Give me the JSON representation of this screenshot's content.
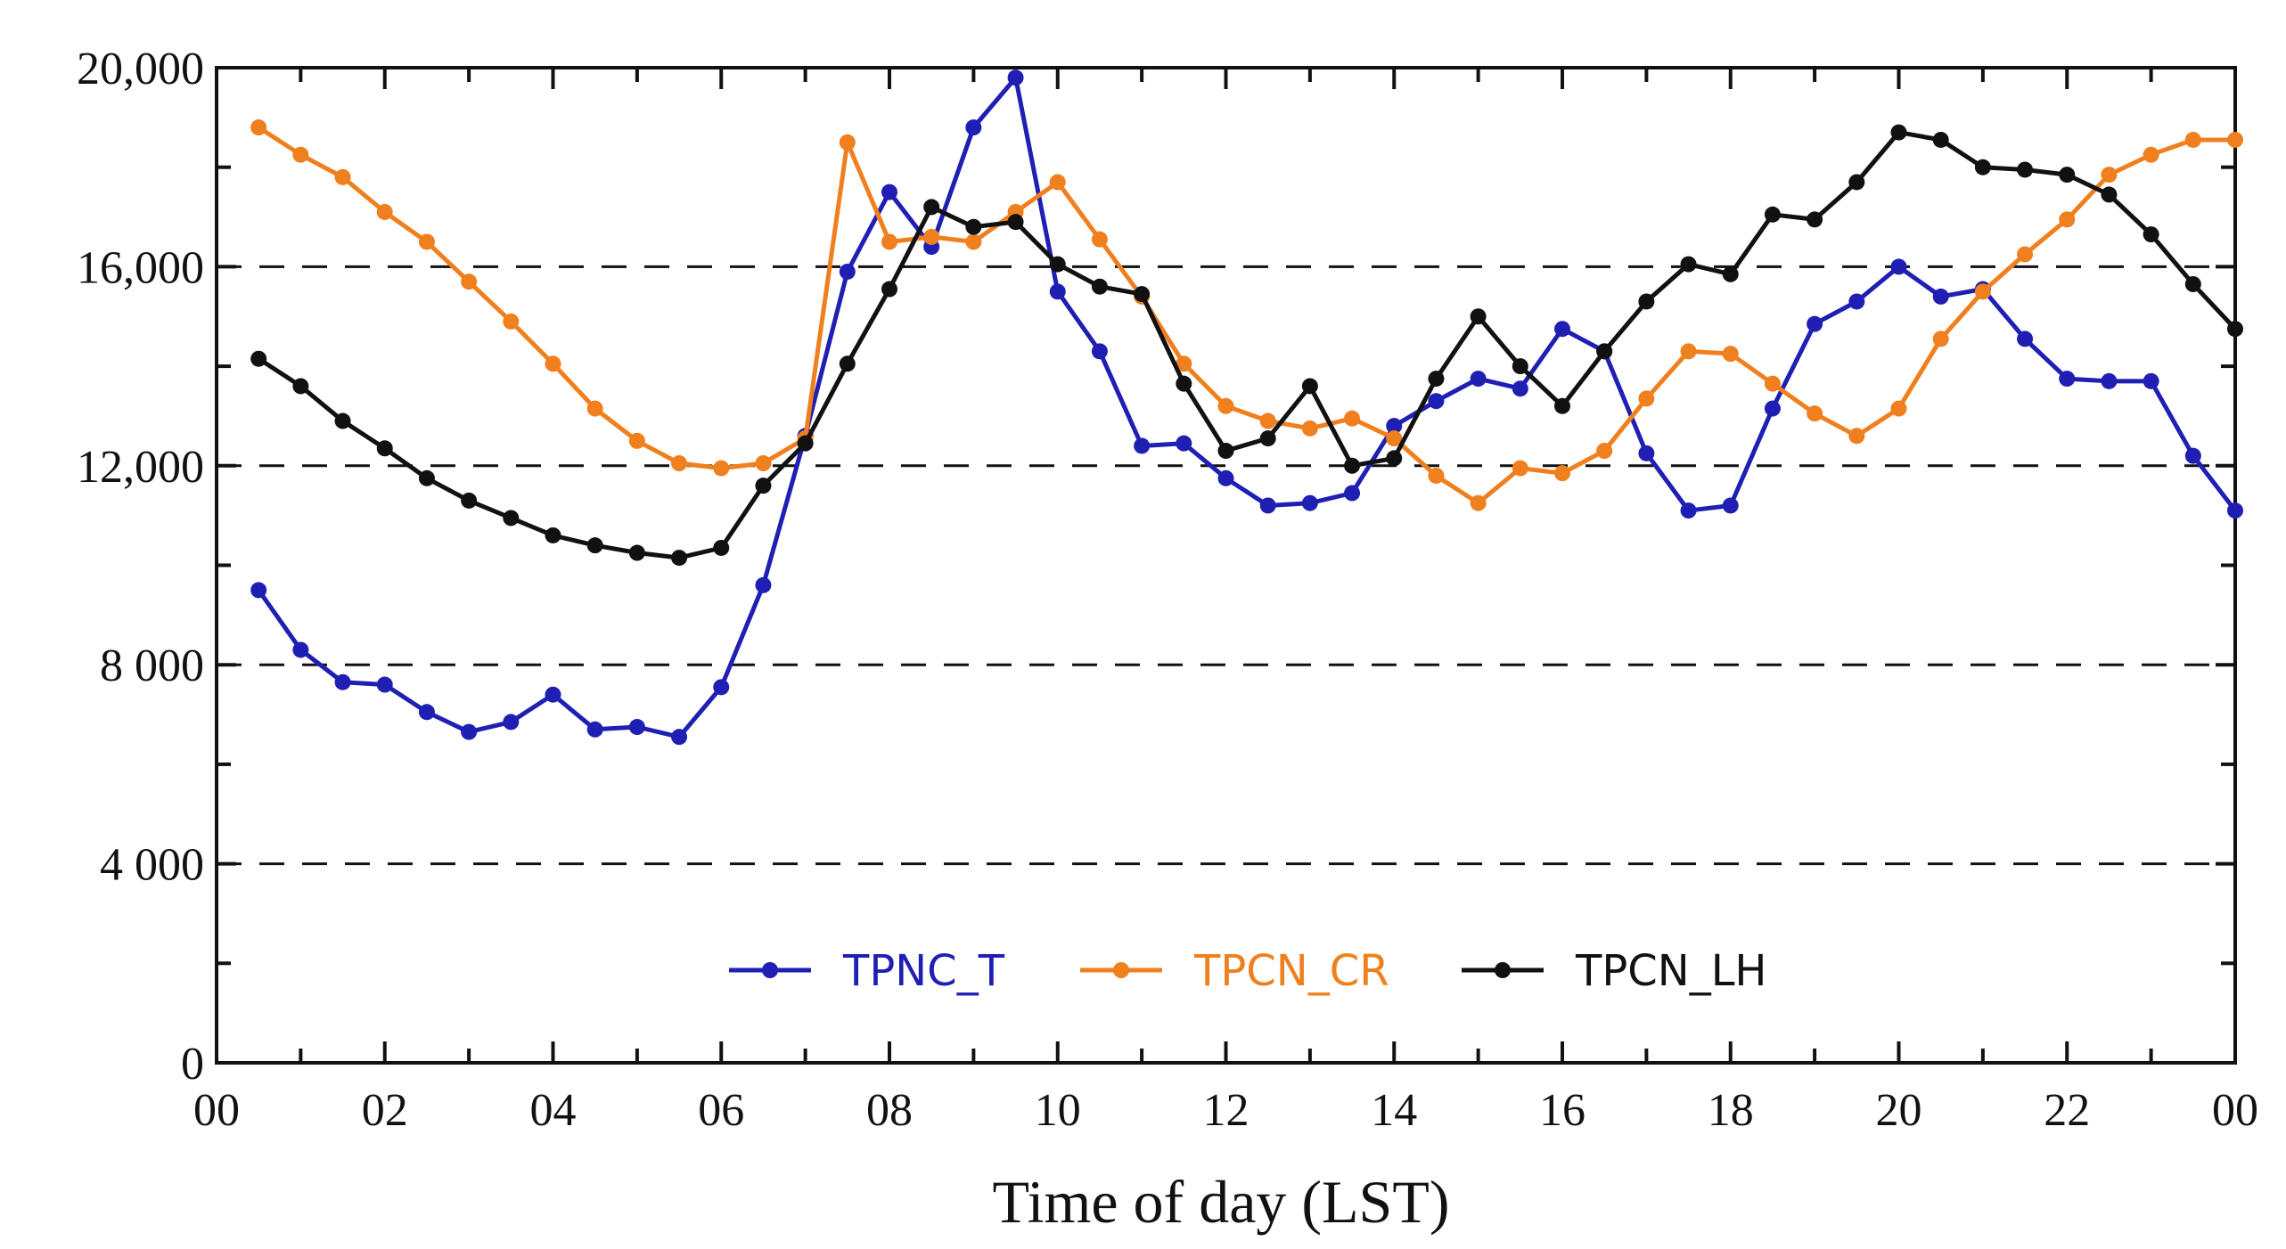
{
  "chart_data": {
    "type": "line",
    "title": "",
    "xlabel": "Time of day (LST)",
    "ylabel": "",
    "ylim": [
      0,
      20000
    ],
    "xlim": [
      0,
      24
    ],
    "x_tick_labels": [
      "00",
      "02",
      "04",
      "06",
      "08",
      "10",
      "12",
      "14",
      "16",
      "18",
      "20",
      "22",
      "00"
    ],
    "y_tick_values": [
      0,
      4000,
      8000,
      12000,
      16000,
      20000
    ],
    "y_tick_labels": [
      "0",
      "4 000",
      "8 000",
      "12,000",
      "16,000",
      "20,000"
    ],
    "grid": "dashed horizontal at 4000, 8000, 12000, 16000",
    "legend_position": "bottom-center",
    "x": [
      0.5,
      1,
      1.5,
      2,
      2.5,
      3,
      3.5,
      4,
      4.5,
      5,
      5.5,
      6,
      6.5,
      7,
      7.5,
      8,
      8.5,
      9,
      9.5,
      10,
      10.5,
      11,
      11.5,
      12,
      12.5,
      13,
      13.5,
      14,
      14.5,
      15,
      15.5,
      16,
      16.5,
      17,
      17.5,
      18,
      18.5,
      19,
      19.5,
      20,
      20.5,
      21,
      21.5,
      22,
      22.5,
      23,
      23.5,
      24
    ],
    "series": [
      {
        "name": "TPNC_T",
        "color": "#1f1fb4",
        "values": [
          9500,
          8300,
          7650,
          7600,
          7050,
          6650,
          6850,
          7400,
          6700,
          6750,
          6550,
          7550,
          9600,
          12600,
          15900,
          17500,
          16400,
          18800,
          19800,
          15500,
          14300,
          12400,
          12450,
          11750,
          11200,
          11250,
          11450,
          12800,
          13300,
          13750,
          13550,
          14750,
          14300,
          12250,
          11100,
          11200,
          13150,
          14850,
          15300,
          16000,
          15400,
          15550,
          14550,
          13750,
          13700,
          13700,
          12200,
          11100
        ]
      },
      {
        "name": "TPCN_CR",
        "color": "#f07f1e",
        "values": [
          18800,
          18250,
          17800,
          17100,
          16500,
          15700,
          14900,
          14050,
          13150,
          12500,
          12050,
          11950,
          12050,
          12550,
          18500,
          16500,
          16600,
          16500,
          17100,
          17700,
          16550,
          15400,
          14050,
          13200,
          12900,
          12750,
          12950,
          12550,
          11800,
          11250,
          11950,
          11850,
          12300,
          13350,
          14300,
          14250,
          13650,
          13050,
          12600,
          13150,
          14550,
          15500,
          16250,
          16950,
          17850,
          18250,
          18550,
          18550
        ]
      },
      {
        "name": "TPCN_LH",
        "color": "#111111",
        "values": [
          14150,
          13600,
          12900,
          12350,
          11750,
          11300,
          10950,
          10600,
          10400,
          10250,
          10150,
          10350,
          11600,
          12450,
          14050,
          15550,
          17200,
          16800,
          16900,
          16050,
          15600,
          15450,
          13650,
          12300,
          12550,
          13600,
          12000,
          12150,
          13750,
          15000,
          14000,
          13200,
          14300,
          15300,
          16050,
          15850,
          17050,
          16950,
          17700,
          18700,
          18550,
          18000,
          17950,
          17850,
          17450,
          16650,
          15650,
          14750
        ]
      }
    ]
  }
}
